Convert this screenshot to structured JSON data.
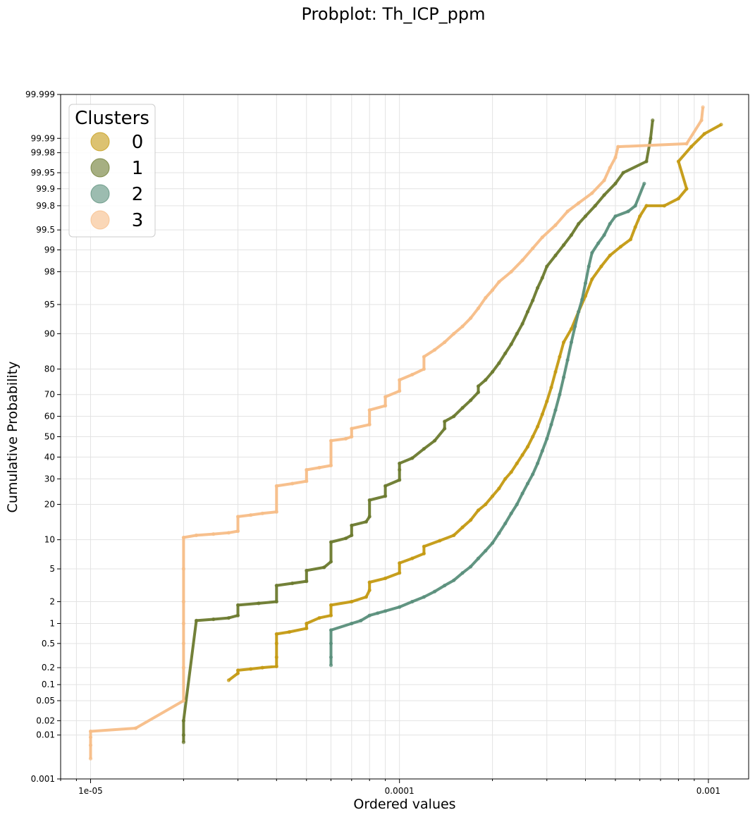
{
  "chart_data": {
    "type": "scatter",
    "title": "Probplot: Th_ICP_ppm",
    "xlabel": "Ordered values",
    "ylabel": "Cumulative Probability",
    "x_scale": "log",
    "y_scale": "probability",
    "xlim": [
      8e-06,
      0.00135
    ],
    "ylim": [
      0.001,
      99.999
    ],
    "x_ticks": [
      {
        "value": 1e-05,
        "label": "1e-05"
      },
      {
        "value": 0.0001,
        "label": "0.0001"
      },
      {
        "value": 0.001,
        "label": "0.001"
      }
    ],
    "y_ticks": [
      {
        "value": 0.001,
        "label": "0.001"
      },
      {
        "value": 0.01,
        "label": "0.01"
      },
      {
        "value": 0.02,
        "label": "0.02"
      },
      {
        "value": 0.05,
        "label": "0.05"
      },
      {
        "value": 0.1,
        "label": "0.1"
      },
      {
        "value": 0.2,
        "label": "0.2"
      },
      {
        "value": 0.5,
        "label": "0.5"
      },
      {
        "value": 1,
        "label": "1"
      },
      {
        "value": 2,
        "label": "2"
      },
      {
        "value": 5,
        "label": "5"
      },
      {
        "value": 10,
        "label": "10"
      },
      {
        "value": 20,
        "label": "20"
      },
      {
        "value": 30,
        "label": "30"
      },
      {
        "value": 40,
        "label": "40"
      },
      {
        "value": 50,
        "label": "50"
      },
      {
        "value": 60,
        "label": "60"
      },
      {
        "value": 70,
        "label": "70"
      },
      {
        "value": 80,
        "label": "80"
      },
      {
        "value": 90,
        "label": "90"
      },
      {
        "value": 95,
        "label": "95"
      },
      {
        "value": 98,
        "label": "98"
      },
      {
        "value": 99,
        "label": "99"
      },
      {
        "value": 99.5,
        "label": "99.5"
      },
      {
        "value": 99.8,
        "label": "99.8"
      },
      {
        "value": 99.9,
        "label": "99.9"
      },
      {
        "value": 99.95,
        "label": "99.95"
      },
      {
        "value": 99.98,
        "label": "99.98"
      },
      {
        "value": 99.99,
        "label": "99.99"
      },
      {
        "value": 99.999,
        "label": "99.999"
      }
    ],
    "grid": true,
    "legend": {
      "title": "Clusters",
      "position": "top-left"
    },
    "series": [
      {
        "name": "0",
        "color": "#c49a12",
        "points": [
          [
            2.8e-05,
            0.12
          ],
          [
            3e-05,
            0.16
          ],
          [
            3e-05,
            0.18
          ],
          [
            3.3e-05,
            0.19
          ],
          [
            3.6e-05,
            0.2
          ],
          [
            4e-05,
            0.21
          ],
          [
            4e-05,
            0.3
          ],
          [
            4e-05,
            0.5
          ],
          [
            4e-05,
            0.7
          ],
          [
            4.4e-05,
            0.75
          ],
          [
            5e-05,
            0.85
          ],
          [
            5e-05,
            1.0
          ],
          [
            5.5e-05,
            1.2
          ],
          [
            6e-05,
            1.3
          ],
          [
            6e-05,
            1.8
          ],
          [
            7e-05,
            2.0
          ],
          [
            7.8e-05,
            2.3
          ],
          [
            8e-05,
            2.8
          ],
          [
            8e-05,
            3.5
          ],
          [
            9e-05,
            3.9
          ],
          [
            0.0001,
            4.5
          ],
          [
            0.0001,
            5.8
          ],
          [
            0.00011,
            6.5
          ],
          [
            0.00012,
            7.3
          ],
          [
            0.00012,
            8.6
          ],
          [
            0.000135,
            9.8
          ],
          [
            0.00015,
            11
          ],
          [
            0.00016,
            13
          ],
          [
            0.00017,
            15
          ],
          [
            0.00018,
            18
          ],
          [
            0.00019,
            20
          ],
          [
            0.0002,
            23
          ],
          [
            0.00021,
            26
          ],
          [
            0.00022,
            30
          ],
          [
            0.00023,
            33
          ],
          [
            0.00024,
            37
          ],
          [
            0.00025,
            41
          ],
          [
            0.00026,
            45
          ],
          [
            0.00027,
            50
          ],
          [
            0.00028,
            55
          ],
          [
            0.00029,
            61
          ],
          [
            0.0003,
            67
          ],
          [
            0.00031,
            73
          ],
          [
            0.00032,
            79
          ],
          [
            0.00033,
            84
          ],
          [
            0.00034,
            88
          ],
          [
            0.00036,
            91
          ],
          [
            0.00038,
            94
          ],
          [
            0.0004,
            96
          ],
          [
            0.00042,
            97.5
          ],
          [
            0.00045,
            98.3
          ],
          [
            0.00048,
            98.8
          ],
          [
            0.00052,
            99.1
          ],
          [
            0.00056,
            99.3
          ],
          [
            0.00058,
            99.55
          ],
          [
            0.0006,
            99.7
          ],
          [
            0.00063,
            99.8
          ],
          [
            0.00072,
            99.8
          ],
          [
            0.0008,
            99.85
          ],
          [
            0.00085,
            99.9
          ],
          [
            0.0008,
            99.97
          ],
          [
            0.00088,
            99.985
          ],
          [
            0.00097,
            99.992
          ],
          [
            0.0011,
            99.995
          ]
        ]
      },
      {
        "name": "1",
        "color": "#6b7a2e",
        "points": [
          [
            2e-05,
            0.007
          ],
          [
            2e-05,
            0.01
          ],
          [
            2e-05,
            0.02
          ],
          [
            2.2e-05,
            1.1
          ],
          [
            2.5e-05,
            1.15
          ],
          [
            2.8e-05,
            1.2
          ],
          [
            3e-05,
            1.3
          ],
          [
            3e-05,
            1.8
          ],
          [
            3.5e-05,
            1.9
          ],
          [
            4e-05,
            2.0
          ],
          [
            4e-05,
            3.2
          ],
          [
            4.5e-05,
            3.4
          ],
          [
            5e-05,
            3.6
          ],
          [
            5e-05,
            4.8
          ],
          [
            5.7e-05,
            5.2
          ],
          [
            6e-05,
            6.0
          ],
          [
            6e-05,
            9.5
          ],
          [
            6.7e-05,
            10.3
          ],
          [
            7e-05,
            11
          ],
          [
            7e-05,
            13.5
          ],
          [
            7.8e-05,
            14.5
          ],
          [
            8e-05,
            16
          ],
          [
            8e-05,
            21.5
          ],
          [
            9e-05,
            23
          ],
          [
            9e-05,
            27
          ],
          [
            0.0001,
            29.5
          ],
          [
            0.0001,
            34
          ],
          [
            0.0001,
            37
          ],
          [
            0.00011,
            39.5
          ],
          [
            0.00012,
            44
          ],
          [
            0.00013,
            48
          ],
          [
            0.00014,
            54
          ],
          [
            0.00014,
            57.5
          ],
          [
            0.00015,
            60
          ],
          [
            0.00016,
            64
          ],
          [
            0.00017,
            67.5
          ],
          [
            0.00018,
            71
          ],
          [
            0.00018,
            73.5
          ],
          [
            0.00019,
            76
          ],
          [
            0.0002,
            79
          ],
          [
            0.00021,
            82
          ],
          [
            0.00022,
            85
          ],
          [
            0.00023,
            87.5
          ],
          [
            0.00024,
            90
          ],
          [
            0.00025,
            92
          ],
          [
            0.00026,
            94
          ],
          [
            0.00027,
            95.5
          ],
          [
            0.00028,
            96.8
          ],
          [
            0.00029,
            97.6
          ],
          [
            0.0003,
            98.3
          ],
          [
            0.00032,
            98.8
          ],
          [
            0.00034,
            99.15
          ],
          [
            0.00036,
            99.4
          ],
          [
            0.00038,
            99.6
          ],
          [
            0.0004,
            99.7
          ],
          [
            0.00043,
            99.8
          ],
          [
            0.00046,
            99.87
          ],
          [
            0.0005,
            99.92
          ],
          [
            0.00053,
            99.95
          ],
          [
            0.00063,
            99.97
          ],
          [
            0.00065,
            99.99
          ],
          [
            0.00066,
            99.996
          ]
        ]
      },
      {
        "name": "2",
        "color": "#5a8f7b",
        "points": [
          [
            6e-05,
            0.22
          ],
          [
            6e-05,
            0.3
          ],
          [
            6e-05,
            0.5
          ],
          [
            6e-05,
            0.8
          ],
          [
            7e-05,
            1.0
          ],
          [
            7.5e-05,
            1.1
          ],
          [
            8e-05,
            1.3
          ],
          [
            8.5e-05,
            1.4
          ],
          [
            9e-05,
            1.5
          ],
          [
            0.0001,
            1.7
          ],
          [
            0.00011,
            2.0
          ],
          [
            0.00012,
            2.3
          ],
          [
            0.00013,
            2.7
          ],
          [
            0.00014,
            3.2
          ],
          [
            0.00015,
            3.7
          ],
          [
            0.00016,
            4.5
          ],
          [
            0.00017,
            5.3
          ],
          [
            0.00018,
            6.5
          ],
          [
            0.00019,
            7.8
          ],
          [
            0.0002,
            9.3
          ],
          [
            0.00021,
            11.5
          ],
          [
            0.00022,
            14
          ],
          [
            0.00023,
            17
          ],
          [
            0.00024,
            20
          ],
          [
            0.00025,
            24
          ],
          [
            0.00026,
            28
          ],
          [
            0.00027,
            32
          ],
          [
            0.00028,
            37
          ],
          [
            0.00029,
            43
          ],
          [
            0.0003,
            49
          ],
          [
            0.00031,
            56
          ],
          [
            0.00032,
            63
          ],
          [
            0.00033,
            70
          ],
          [
            0.00034,
            77
          ],
          [
            0.00035,
            83
          ],
          [
            0.00036,
            88
          ],
          [
            0.00037,
            91.5
          ],
          [
            0.00038,
            94
          ],
          [
            0.00039,
            95.6
          ],
          [
            0.0004,
            97.2
          ],
          [
            0.00041,
            98.3
          ],
          [
            0.00042,
            98.9
          ],
          [
            0.00044,
            99.2
          ],
          [
            0.00046,
            99.4
          ],
          [
            0.00048,
            99.6
          ],
          [
            0.0005,
            99.7
          ],
          [
            0.00055,
            99.75
          ],
          [
            0.00058,
            99.8
          ],
          [
            0.00062,
            99.92
          ]
        ]
      },
      {
        "name": "3",
        "color": "#f7bd87",
        "points": [
          [
            1e-05,
            0.003
          ],
          [
            1e-05,
            0.006
          ],
          [
            1e-05,
            0.009
          ],
          [
            1e-05,
            0.012
          ],
          [
            1.4e-05,
            0.014
          ],
          [
            2e-05,
            0.05
          ],
          [
            2e-05,
            0.2
          ],
          [
            2e-05,
            0.5
          ],
          [
            2e-05,
            1.0
          ],
          [
            2e-05,
            2.0
          ],
          [
            2e-05,
            5.0
          ],
          [
            2e-05,
            10.5
          ],
          [
            2.2e-05,
            11
          ],
          [
            2.5e-05,
            11.3
          ],
          [
            2.8e-05,
            11.6
          ],
          [
            3e-05,
            12
          ],
          [
            3e-05,
            16
          ],
          [
            3.3e-05,
            16.5
          ],
          [
            3.6e-05,
            17
          ],
          [
            4e-05,
            17.5
          ],
          [
            4e-05,
            27
          ],
          [
            4.5e-05,
            28
          ],
          [
            5e-05,
            29
          ],
          [
            5e-05,
            34
          ],
          [
            5.5e-05,
            35
          ],
          [
            6e-05,
            36
          ],
          [
            6e-05,
            48
          ],
          [
            6.7e-05,
            49
          ],
          [
            7e-05,
            50
          ],
          [
            7e-05,
            54
          ],
          [
            8e-05,
            56
          ],
          [
            8e-05,
            63
          ],
          [
            9e-05,
            65
          ],
          [
            9e-05,
            69
          ],
          [
            0.0001,
            71.5
          ],
          [
            0.0001,
            76
          ],
          [
            0.00011,
            78
          ],
          [
            0.00012,
            80
          ],
          [
            0.00012,
            84
          ],
          [
            0.00013,
            86
          ],
          [
            0.00014,
            88
          ],
          [
            0.00015,
            90
          ],
          [
            0.00016,
            91.5
          ],
          [
            0.00017,
            93
          ],
          [
            0.00018,
            94.5
          ],
          [
            0.00019,
            95.8
          ],
          [
            0.0002,
            96.6
          ],
          [
            0.00021,
            97.3
          ],
          [
            0.00023,
            98
          ],
          [
            0.00025,
            98.6
          ],
          [
            0.00027,
            99.05
          ],
          [
            0.00029,
            99.35
          ],
          [
            0.00032,
            99.58
          ],
          [
            0.00035,
            99.75
          ],
          [
            0.00038,
            99.82
          ],
          [
            0.00042,
            99.88
          ],
          [
            0.00046,
            99.93
          ],
          [
            0.00048,
            99.96
          ],
          [
            0.0005,
            99.975
          ],
          [
            0.00051,
            99.985
          ],
          [
            0.00085,
            99.987
          ],
          [
            0.00095,
            99.996
          ],
          [
            0.00096,
            99.998
          ]
        ]
      }
    ]
  }
}
